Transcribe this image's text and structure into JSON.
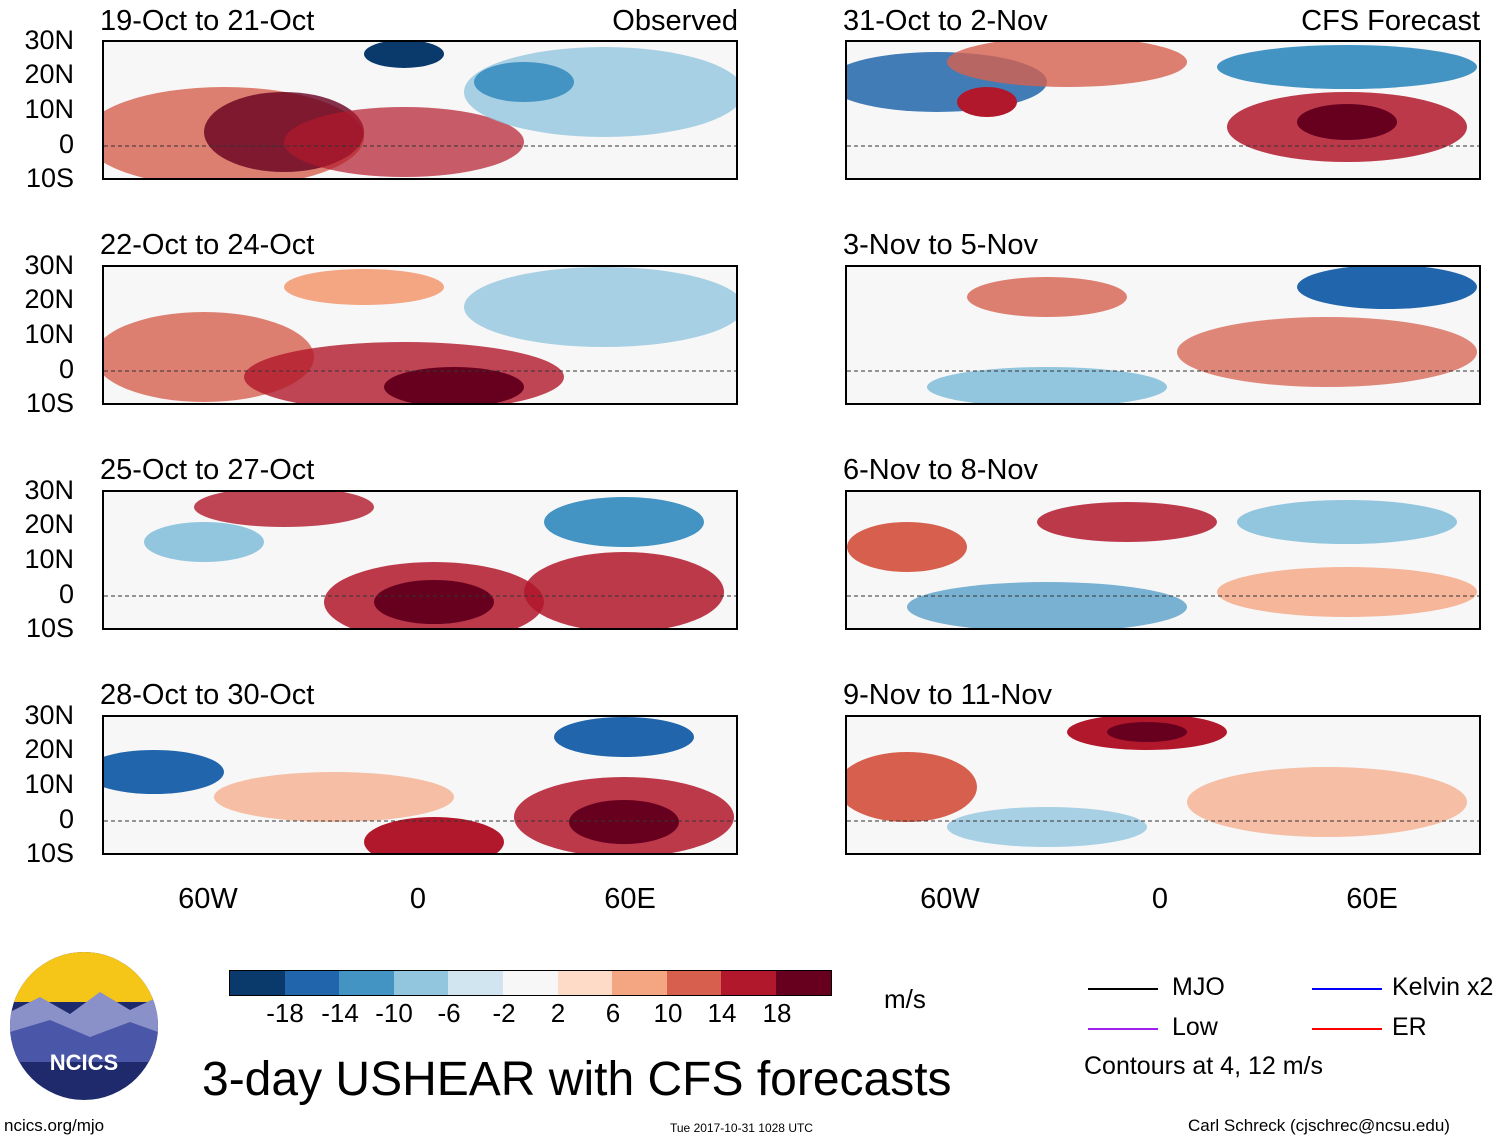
{
  "left_column": {
    "label": "Observed"
  },
  "right_column": {
    "label": "CFS Forecast"
  },
  "panels": [
    {
      "title": "19-Oct to 21-Oct"
    },
    {
      "title": "22-Oct to 24-Oct"
    },
    {
      "title": "25-Oct to 27-Oct"
    },
    {
      "title": "28-Oct to 30-Oct"
    },
    {
      "title": "31-Oct to 2-Nov"
    },
    {
      "title": "3-Nov to 5-Nov"
    },
    {
      "title": "6-Nov to 8-Nov"
    },
    {
      "title": "9-Nov to 11-Nov"
    }
  ],
  "lat_labels": [
    "30N",
    "20N",
    "10N",
    "0",
    "10S"
  ],
  "lon_labels": [
    "60W",
    "0",
    "60E"
  ],
  "colorbar": {
    "colors": [
      "#0a3a6b",
      "#2166ac",
      "#4393c3",
      "#92c5de",
      "#d1e5f0",
      "#f7f7f7",
      "#fddbc7",
      "#f4a582",
      "#d6604d",
      "#b2182b",
      "#67001f"
    ],
    "ticks": [
      "-18",
      "-14",
      "-10",
      "-6",
      "-2",
      "2",
      "6",
      "10",
      "14",
      "18"
    ],
    "units": "m/s"
  },
  "title": "3-day USHEAR with CFS forecasts",
  "legend": {
    "items": [
      {
        "label": "MJO",
        "color": "#000000"
      },
      {
        "label": "Low",
        "color": "#a020f0"
      },
      {
        "label": "Kelvin x2",
        "color": "#0000ff"
      },
      {
        "label": "ER",
        "color": "#ff0000"
      }
    ],
    "contours_note": "Contours at 4, 12 m/s"
  },
  "logo": {
    "text": "NCICS"
  },
  "footer": {
    "site": "ncics.org/mjo",
    "timestamp": "Tue 2017-10-31 1028 UTC",
    "credit": "Carl Schreck (cjschrec@ncsu.edu)"
  }
}
